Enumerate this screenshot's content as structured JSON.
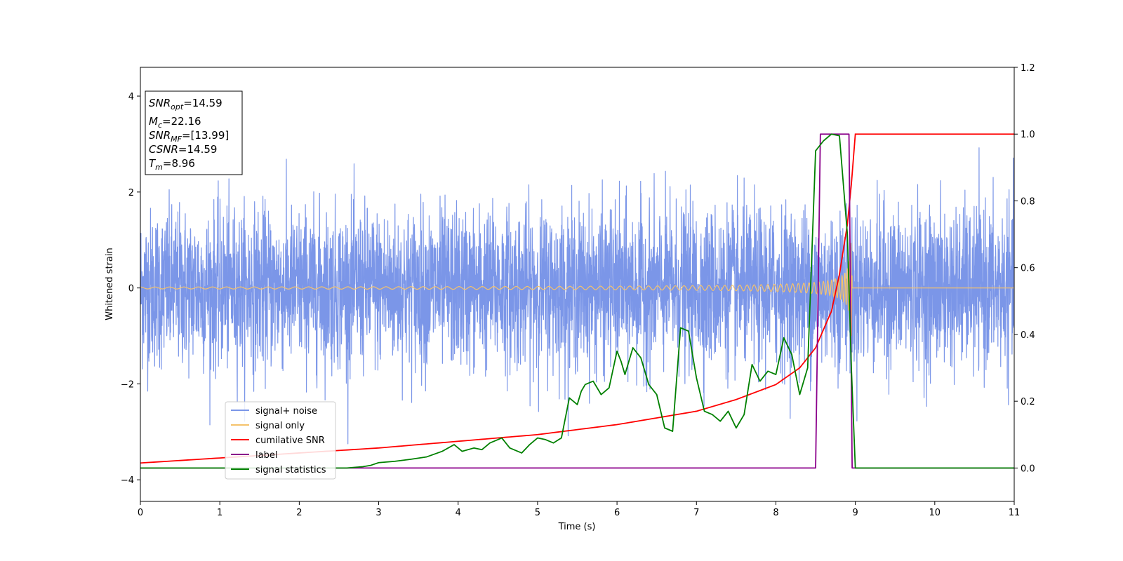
{
  "chart_data": {
    "type": "line",
    "xlabel": "Time (s)",
    "ylabel": "Whitened strain",
    "xlim": [
      0,
      11
    ],
    "ylim_left": [
      -4.45,
      4.6
    ],
    "ylim_right": [
      -0.1,
      1.2
    ],
    "x_ticks": [
      0,
      1,
      2,
      3,
      4,
      5,
      6,
      7,
      8,
      9,
      10,
      11
    ],
    "y_ticks_left": [
      -4,
      -2,
      0,
      2,
      4
    ],
    "y_ticks_right": [
      "0.0",
      "0.2",
      "0.4",
      "0.6",
      "0.8",
      "1.0",
      "1.2"
    ],
    "grid": false,
    "legend_position": "lower-left",
    "annotation": {
      "lines": [
        {
          "base": "SNR",
          "sub": "opt",
          "value": "=14.59"
        },
        {
          "base": "M",
          "sub": "c",
          "value": "=22.16"
        },
        {
          "base": "SNR",
          "sub": "MF",
          "value": "=[13.99]"
        },
        {
          "base": "CSNR",
          "sub": "",
          "value": "=14.59"
        },
        {
          "base": "T",
          "sub": "m",
          "value": "=8.96"
        }
      ]
    },
    "series": [
      {
        "name": "signal+ noise",
        "axis": "left",
        "color": "#7b96e8",
        "kind": "noise",
        "noise_amplitude": 1.0,
        "noise_peak": 3.25,
        "duration": 11.0
      },
      {
        "name": "signal only",
        "axis": "left",
        "color": "#f5c26b",
        "kind": "chirp",
        "merger_time": 8.96,
        "amplitude_start": 0.02,
        "amplitude_peak": 1.0
      },
      {
        "name": "cumilative SNR",
        "axis": "right",
        "color": "#ff0000",
        "kind": "curve",
        "x": [
          0,
          1,
          2,
          3,
          4,
          5,
          6,
          7,
          7.5,
          8,
          8.3,
          8.5,
          8.7,
          8.8,
          8.9,
          8.95,
          9.0,
          11
        ],
        "y": [
          0.015,
          0.03,
          0.045,
          0.06,
          0.08,
          0.1,
          0.13,
          0.17,
          0.205,
          0.25,
          0.3,
          0.36,
          0.47,
          0.58,
          0.73,
          0.85,
          1.0,
          1.0
        ]
      },
      {
        "name": "label",
        "axis": "right",
        "color": "#8b008b",
        "kind": "step",
        "x": [
          0,
          8.5,
          8.56,
          8.92,
          8.96,
          11
        ],
        "y": [
          0,
          0,
          1.0,
          1.0,
          0,
          0
        ]
      },
      {
        "name": "signal statistics",
        "axis": "right",
        "color": "#008000",
        "kind": "curve",
        "x": [
          0,
          2.6,
          2.8,
          2.9,
          3.0,
          3.2,
          3.4,
          3.6,
          3.8,
          3.95,
          4.05,
          4.2,
          4.3,
          4.4,
          4.55,
          4.65,
          4.8,
          4.9,
          5.0,
          5.1,
          5.2,
          5.3,
          5.4,
          5.5,
          5.55,
          5.6,
          5.7,
          5.8,
          5.9,
          6.0,
          6.05,
          6.1,
          6.2,
          6.3,
          6.4,
          6.5,
          6.6,
          6.7,
          6.8,
          6.9,
          7.0,
          7.1,
          7.2,
          7.3,
          7.4,
          7.5,
          7.6,
          7.7,
          7.8,
          7.9,
          8.0,
          8.1,
          8.2,
          8.3,
          8.4,
          8.5,
          8.6,
          8.7,
          8.8,
          8.9,
          8.95,
          9.0,
          11
        ],
        "y": [
          0.0,
          0.0,
          0.004,
          0.008,
          0.016,
          0.02,
          0.026,
          0.033,
          0.05,
          0.07,
          0.05,
          0.06,
          0.055,
          0.075,
          0.09,
          0.06,
          0.045,
          0.07,
          0.09,
          0.085,
          0.075,
          0.09,
          0.21,
          0.19,
          0.23,
          0.25,
          0.26,
          0.22,
          0.24,
          0.35,
          0.32,
          0.28,
          0.36,
          0.33,
          0.25,
          0.22,
          0.12,
          0.11,
          0.42,
          0.41,
          0.27,
          0.17,
          0.16,
          0.14,
          0.17,
          0.12,
          0.16,
          0.31,
          0.26,
          0.29,
          0.28,
          0.39,
          0.34,
          0.22,
          0.3,
          0.95,
          0.98,
          1.0,
          0.995,
          0.7,
          0.3,
          0.0,
          0.0
        ]
      }
    ]
  }
}
